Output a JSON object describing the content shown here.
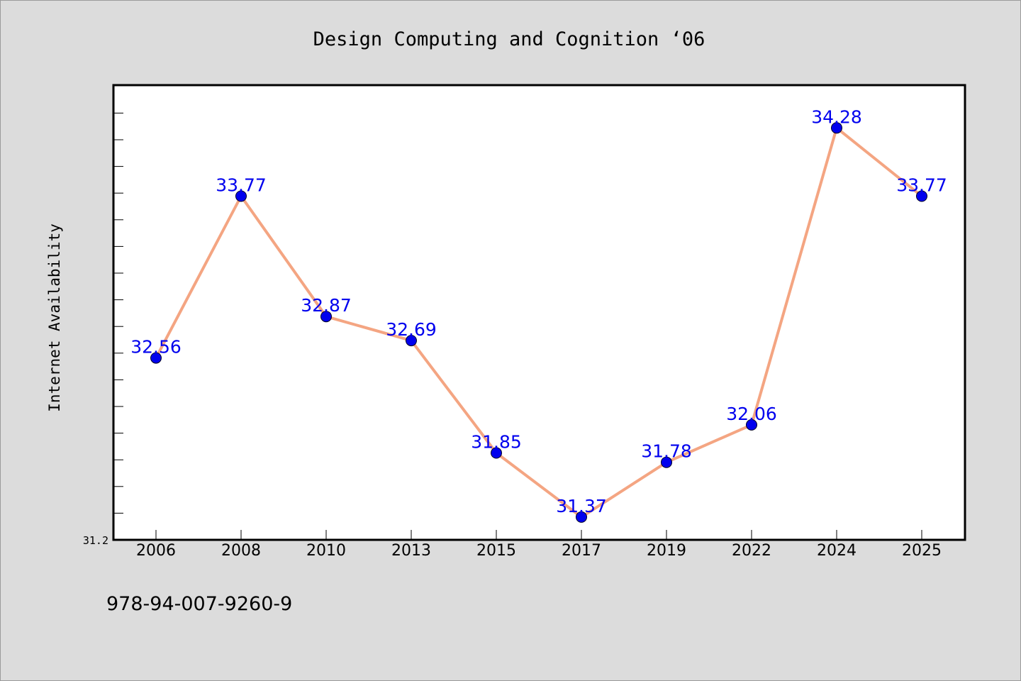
{
  "chart_data": {
    "type": "line",
    "title": "Design Computing and Cognition  ‘06",
    "xlabel": "",
    "ylabel": "Internet Availability",
    "categories": [
      "2006",
      "2008",
      "2010",
      "2013",
      "2015",
      "2017",
      "2019",
      "2022",
      "2024",
      "2025"
    ],
    "series": [
      {
        "values": [
          32.56,
          33.77,
          32.87,
          32.69,
          31.85,
          31.37,
          31.78,
          32.06,
          34.28,
          33.77
        ]
      }
    ],
    "ylim": [
      31.2,
      34.6
    ],
    "ytick_labels": [
      "31.2"
    ],
    "grid": false,
    "legend": "none",
    "line_color": "#f4a582",
    "marker_color": "#0000ee",
    "label_color": "#0000ee"
  },
  "footer": {
    "isbn": "978-94-007-9260-9"
  }
}
